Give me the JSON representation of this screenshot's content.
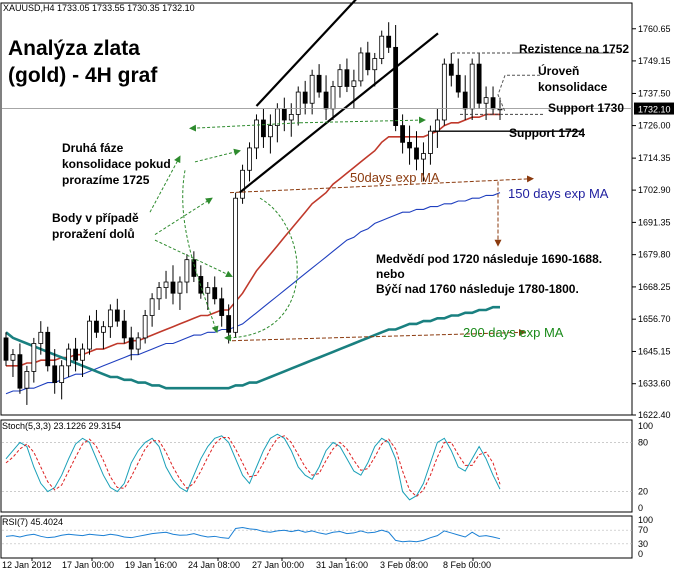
{
  "chart_data": {
    "type": "candlestick",
    "symbol_header": "XAUUSD,H4  1733.05 1733.55 1730.35 1732.10",
    "title_line1": "Analýza zlata",
    "title_line2": "(gold) - 4H graf",
    "last_price_label": "1732.10",
    "y_ticks": [
      "1760.65",
      "1749.15",
      "1737.50",
      "1726.00",
      "1714.35",
      "1702.90",
      "1691.35",
      "1679.80",
      "1668.25",
      "1656.70",
      "1645.15",
      "1633.60",
      "1622.40"
    ],
    "ylim": [
      1622.4,
      1766.3
    ],
    "x_ticks": [
      "12 Jan 2012",
      "17 Jan 00:00",
      "19 Jan 16:00",
      "24 Jan 08:00",
      "27 Jan 00:00",
      "31 Jan 16:00",
      "3 Feb 08:00",
      "8 Feb 00:00"
    ],
    "candles": [
      [
        1650,
        1652,
        1640,
        1642
      ],
      [
        1642,
        1646,
        1636,
        1644
      ],
      [
        1644,
        1648,
        1630,
        1632
      ],
      [
        1632,
        1640,
        1626,
        1638
      ],
      [
        1638,
        1650,
        1634,
        1648
      ],
      [
        1648,
        1656,
        1644,
        1652
      ],
      [
        1652,
        1654,
        1638,
        1640
      ],
      [
        1640,
        1646,
        1630,
        1634
      ],
      [
        1634,
        1642,
        1628,
        1640
      ],
      [
        1640,
        1648,
        1636,
        1646
      ],
      [
        1646,
        1650,
        1638,
        1642
      ],
      [
        1642,
        1648,
        1636,
        1646
      ],
      [
        1646,
        1658,
        1644,
        1656
      ],
      [
        1656,
        1660,
        1650,
        1652
      ],
      [
        1652,
        1656,
        1646,
        1654
      ],
      [
        1654,
        1662,
        1650,
        1660
      ],
      [
        1660,
        1664,
        1654,
        1656
      ],
      [
        1656,
        1660,
        1648,
        1650
      ],
      [
        1650,
        1654,
        1642,
        1646
      ],
      [
        1646,
        1652,
        1644,
        1650
      ],
      [
        1650,
        1660,
        1648,
        1658
      ],
      [
        1658,
        1666,
        1654,
        1664
      ],
      [
        1664,
        1670,
        1660,
        1668
      ],
      [
        1668,
        1674,
        1664,
        1670
      ],
      [
        1670,
        1676,
        1662,
        1666
      ],
      [
        1666,
        1672,
        1660,
        1670
      ],
      [
        1670,
        1680,
        1666,
        1678
      ],
      [
        1678,
        1681,
        1670,
        1672
      ],
      [
        1672,
        1676,
        1664,
        1666
      ],
      [
        1666,
        1670,
        1660,
        1668
      ],
      [
        1668,
        1672,
        1662,
        1664
      ],
      [
        1664,
        1668,
        1654,
        1658
      ],
      [
        1658,
        1662,
        1648,
        1652
      ],
      [
        1652,
        1702,
        1650,
        1700
      ],
      [
        1700,
        1712,
        1698,
        1710
      ],
      [
        1710,
        1720,
        1706,
        1718
      ],
      [
        1718,
        1730,
        1714,
        1728
      ],
      [
        1728,
        1732,
        1718,
        1722
      ],
      [
        1722,
        1730,
        1716,
        1726
      ],
      [
        1726,
        1734,
        1720,
        1732
      ],
      [
        1732,
        1736,
        1724,
        1728
      ],
      [
        1728,
        1734,
        1722,
        1730
      ],
      [
        1730,
        1740,
        1726,
        1738
      ],
      [
        1738,
        1742,
        1730,
        1734
      ],
      [
        1734,
        1746,
        1730,
        1744
      ],
      [
        1744,
        1748,
        1736,
        1738
      ],
      [
        1738,
        1744,
        1728,
        1732
      ],
      [
        1732,
        1742,
        1728,
        1740
      ],
      [
        1740,
        1748,
        1736,
        1746
      ],
      [
        1746,
        1750,
        1738,
        1740
      ],
      [
        1740,
        1746,
        1732,
        1742
      ],
      [
        1742,
        1754,
        1740,
        1752
      ],
      [
        1752,
        1756,
        1744,
        1746
      ],
      [
        1746,
        1752,
        1740,
        1750
      ],
      [
        1750,
        1760,
        1748,
        1758
      ],
      [
        1758,
        1763,
        1752,
        1754
      ],
      [
        1754,
        1762,
        1724,
        1726
      ],
      [
        1726,
        1730,
        1716,
        1720
      ],
      [
        1720,
        1726,
        1712,
        1718
      ],
      [
        1718,
        1724,
        1710,
        1714
      ],
      [
        1714,
        1720,
        1706,
        1716
      ],
      [
        1716,
        1726,
        1712,
        1724
      ],
      [
        1724,
        1732,
        1718,
        1728
      ],
      [
        1728,
        1750,
        1726,
        1748
      ],
      [
        1748,
        1752,
        1740,
        1744
      ],
      [
        1744,
        1750,
        1736,
        1738
      ],
      [
        1738,
        1744,
        1728,
        1732
      ],
      [
        1732,
        1750,
        1728,
        1748
      ],
      [
        1748,
        1752,
        1732,
        1734
      ],
      [
        1734,
        1740,
        1728,
        1736
      ],
      [
        1736,
        1740,
        1730,
        1732
      ],
      [
        1732,
        1736,
        1728,
        1732
      ]
    ],
    "moving_averages": [
      {
        "name": "50days exp MA",
        "color": "#c0392b",
        "values": [
          1640,
          1640,
          1640,
          1641,
          1641,
          1642,
          1642,
          1642,
          1643,
          1643,
          1644,
          1644,
          1645,
          1646,
          1646,
          1647,
          1648,
          1648,
          1649,
          1649,
          1650,
          1651,
          1652,
          1653,
          1654,
          1655,
          1656,
          1657,
          1658,
          1658,
          1659,
          1660,
          1660,
          1663,
          1666,
          1670,
          1674,
          1677,
          1680,
          1683,
          1686,
          1689,
          1692,
          1695,
          1698,
          1700,
          1702,
          1705,
          1707,
          1709,
          1711,
          1713,
          1715,
          1717,
          1720,
          1722,
          1722,
          1722,
          1722,
          1722,
          1722,
          1723,
          1724,
          1726,
          1727,
          1727,
          1728,
          1729,
          1729,
          1730,
          1730,
          1730
        ]
      },
      {
        "name": "150 days exp MA",
        "color": "#1f3fbf",
        "values": [
          1630,
          1631,
          1631,
          1632,
          1632,
          1633,
          1634,
          1634,
          1635,
          1636,
          1637,
          1637,
          1638,
          1639,
          1640,
          1641,
          1642,
          1643,
          1644,
          1644,
          1645,
          1646,
          1647,
          1648,
          1648,
          1649,
          1650,
          1651,
          1651,
          1652,
          1652,
          1653,
          1653,
          1654,
          1655,
          1657,
          1659,
          1661,
          1663,
          1665,
          1667,
          1669,
          1671,
          1673,
          1675,
          1677,
          1679,
          1681,
          1683,
          1685,
          1686,
          1688,
          1689,
          1691,
          1692,
          1693,
          1694,
          1695,
          1695,
          1696,
          1696,
          1697,
          1697,
          1698,
          1698,
          1699,
          1699,
          1700,
          1700,
          1701,
          1701,
          1702
        ]
      },
      {
        "name": "200 days exp MA",
        "color": "#1a8080",
        "values": [
          1652,
          1650,
          1649,
          1648,
          1647,
          1646,
          1645,
          1644,
          1643,
          1642,
          1641,
          1640,
          1639,
          1638,
          1637,
          1636,
          1636,
          1635,
          1635,
          1634,
          1634,
          1633,
          1633,
          1632,
          1632,
          1632,
          1632,
          1632,
          1632,
          1632,
          1632,
          1632,
          1632,
          1633,
          1633,
          1634,
          1634,
          1635,
          1636,
          1637,
          1638,
          1639,
          1640,
          1641,
          1642,
          1643,
          1644,
          1645,
          1646,
          1647,
          1648,
          1649,
          1650,
          1651,
          1652,
          1653,
          1653,
          1654,
          1655,
          1655,
          1656,
          1656,
          1657,
          1657,
          1658,
          1658,
          1659,
          1659,
          1660,
          1660,
          1661,
          1661
        ]
      }
    ],
    "levels": [
      {
        "label": "Rezistence na 1752",
        "value": 1752
      },
      {
        "label": "Support 1730",
        "value": 1730
      },
      {
        "label": "Support 1724",
        "value": 1724
      }
    ],
    "consolidation_label_line1": "Úroveň",
    "consolidation_label_line2": "konsolidace",
    "annotations": {
      "second_phase": [
        "Druhá fáze",
        "konsolidace pokud",
        "prorazíme 1725"
      ],
      "breakdown_points": [
        "Body v případě",
        "proražení dolů"
      ],
      "scenario": [
        "Medvědí pod 1720 následuje 1690-1688.",
        "nebo",
        "Býčí nad 1760 následuje 1780-1800."
      ],
      "ma50_label": "50days exp MA",
      "ma150_label": "150 days exp MA",
      "ma200_label": "200 days exp MA"
    },
    "stoch": {
      "header": "Stoch(5,3,3) 23.1226 29.3154",
      "y_ticks": [
        "100",
        "80",
        "20",
        "0"
      ],
      "k": [
        60,
        70,
        80,
        75,
        50,
        30,
        20,
        25,
        40,
        60,
        78,
        85,
        80,
        60,
        40,
        25,
        20,
        30,
        55,
        70,
        80,
        85,
        75,
        50,
        35,
        25,
        20,
        40,
        60,
        75,
        85,
        88,
        80,
        60,
        40,
        30,
        50,
        70,
        85,
        90,
        85,
        70,
        50,
        40,
        35,
        50,
        70,
        80,
        75,
        60,
        45,
        40,
        55,
        75,
        85,
        80,
        60,
        20,
        10,
        15,
        30,
        55,
        80,
        85,
        70,
        50,
        45,
        60,
        75,
        60,
        40,
        23
      ],
      "d": [
        55,
        62,
        72,
        78,
        68,
        50,
        32,
        22,
        28,
        45,
        62,
        78,
        84,
        75,
        58,
        38,
        25,
        24,
        38,
        55,
        72,
        82,
        82,
        68,
        50,
        35,
        24,
        30,
        45,
        62,
        78,
        86,
        86,
        72,
        55,
        38,
        40,
        55,
        72,
        85,
        88,
        80,
        65,
        50,
        40,
        42,
        58,
        72,
        80,
        72,
        58,
        46,
        48,
        62,
        78,
        84,
        72,
        45,
        22,
        14,
        22,
        40,
        62,
        80,
        80,
        65,
        52,
        52,
        65,
        68,
        55,
        29
      ]
    },
    "rsi": {
      "header": "RSI(7) 45.4024",
      "y_ticks": [
        "100",
        "70",
        "30",
        "0"
      ],
      "values": [
        52,
        54,
        50,
        55,
        58,
        52,
        48,
        50,
        55,
        58,
        56,
        54,
        58,
        56,
        54,
        58,
        55,
        50,
        48,
        52,
        56,
        60,
        62,
        64,
        58,
        55,
        56,
        60,
        54,
        50,
        52,
        48,
        46,
        75,
        78,
        74,
        72,
        66,
        64,
        68,
        70,
        66,
        70,
        64,
        68,
        62,
        58,
        64,
        66,
        60,
        62,
        68,
        62,
        64,
        70,
        64,
        40,
        36,
        38,
        36,
        40,
        48,
        54,
        68,
        62,
        56,
        50,
        64,
        52,
        54,
        50,
        45
      ]
    }
  }
}
